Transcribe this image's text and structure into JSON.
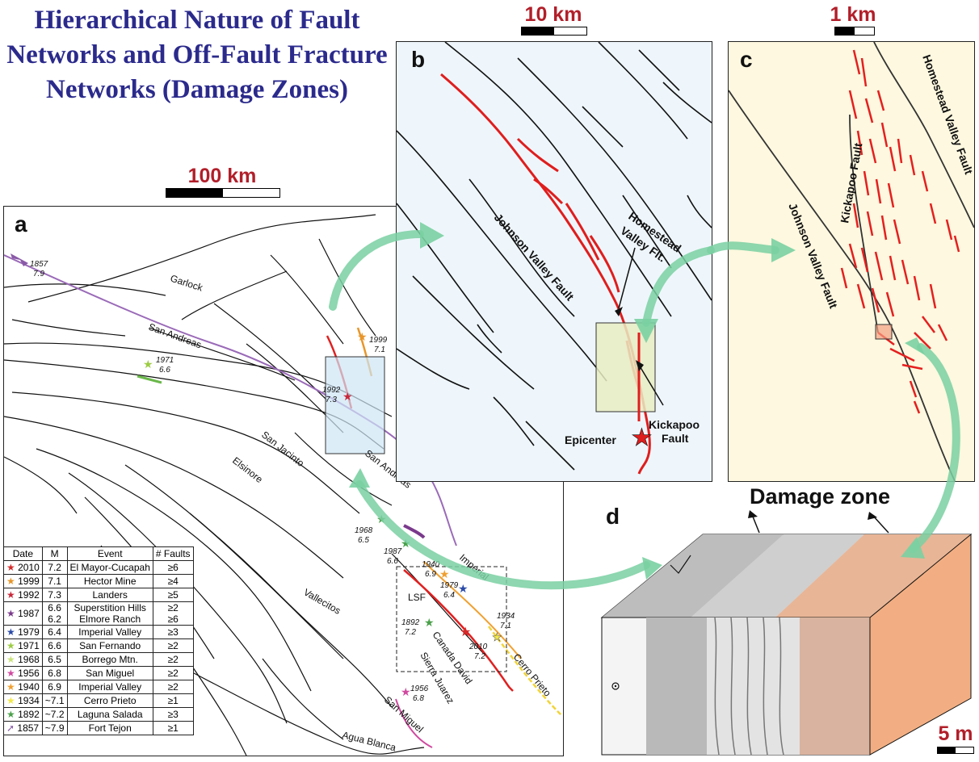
{
  "title": "Hierarchical Nature of Fault Networks and Off-Fault Fracture Networks (Damage Zones)",
  "scale_a": "100 km",
  "scale_b": "10 km",
  "scale_c": "1 km",
  "scale_d": "5 m",
  "panels": {
    "a": "a",
    "b": "b",
    "c": "c",
    "d": "d"
  },
  "panel_a_labels": {
    "garlock": "Garlock",
    "san_andreas_n": "San Andreas",
    "san_andreas_s": "San Andreas",
    "san_jacinto": "San Jacinto",
    "elsinore": "Elsinore",
    "vallecitos": "Vallecitos",
    "imperial": "Imperial",
    "lsf": "LSF",
    "canada_david": "Canada David",
    "sierra_juarez": "Sierra Juarez",
    "cerro_prieto": "Cerro Prieto",
    "san_miguel": "San Miguel",
    "agua_blanca": "Agua Blanca",
    "ev1857_year": "1857",
    "ev1857_m": "7.9",
    "ev1971_year": "1971",
    "ev1971_m": "6.6",
    "ev1999_year": "1999",
    "ev1999_m": "7.1",
    "ev1992_year": "1992",
    "ev1992_m": "7.3",
    "ev1968_year": "1968",
    "ev1968_m": "6.5",
    "ev1987_year": "1987",
    "ev1987_m": "6.6",
    "ev1940_year": "1940",
    "ev1940_m": "6.9",
    "ev1979_year": "1979",
    "ev1979_m": "6.4",
    "ev1934_year": "1934",
    "ev1934_m": "7.1",
    "ev1892_year": "1892",
    "ev1892_m": "7.2",
    "ev2010_year": "2010",
    "ev2010_m": "7.2",
    "ev1956_year": "1956",
    "ev1956_m": "6.8"
  },
  "panel_b_labels": {
    "johnson_valley": "Johnson Valley Fault",
    "homestead_1": "Homestead",
    "homestead_2": "Valley Flt.",
    "kickapoo_1": "Kickapoo",
    "kickapoo_2": "Fault",
    "epicenter": "Epicenter"
  },
  "panel_c_labels": {
    "homestead": "Homestead Valley Fault",
    "kickapoo": "Kickapoo Fault",
    "johnson_valley": "Johnson Valley Fault"
  },
  "damage_zone_label": "Damage zone",
  "legend": {
    "headers": [
      "Date",
      "M",
      "Event",
      "# Faults"
    ],
    "rows": [
      {
        "date": "2010",
        "m": "7.2",
        "event": "El Mayor-Cucapah",
        "faults": "≥6",
        "color": "#d42a2a"
      },
      {
        "date": "1999",
        "m": "7.1",
        "event": "Hector Mine",
        "faults": "≥4",
        "color": "#e8962a"
      },
      {
        "date": "1992",
        "m": "7.3",
        "event": "Landers",
        "faults": "≥5",
        "color": "#c8283a"
      },
      {
        "date": "1987",
        "m": "6.6",
        "event": "Superstition Hills",
        "faults": "≥2",
        "color": "#7a3a8c",
        "m2": "6.2",
        "event2": "Elmore Ranch",
        "faults2": "≥6"
      },
      {
        "date": "1979",
        "m": "6.4",
        "event": "Imperial Valley",
        "faults": "≥3",
        "color": "#2a4aa8"
      },
      {
        "date": "1971",
        "m": "6.6",
        "event": "San Fernando",
        "faults": "≥2",
        "color": "#9ccc44"
      },
      {
        "date": "1968",
        "m": "6.5",
        "event": "Borrego Mtn.",
        "faults": "≥2",
        "color": "#c9e27a"
      },
      {
        "date": "1956",
        "m": "6.8",
        "event": "San Miguel",
        "faults": "≥2",
        "color": "#d04aa0"
      },
      {
        "date": "1940",
        "m": "6.9",
        "event": "Imperial Valley",
        "faults": "≥2",
        "color": "#f0a030"
      },
      {
        "date": "1934",
        "m": "~7.1",
        "event": "Cerro Prieto",
        "faults": "≥1",
        "color": "#f2e84a"
      },
      {
        "date": "1892",
        "m": "~7.2",
        "event": "Laguna Salada",
        "faults": "≥3",
        "color": "#4aa04a"
      },
      {
        "date": "1857",
        "m": "~7.9",
        "event": "Fort Tejon",
        "faults": "≥1",
        "color": "#8a5aa8"
      }
    ]
  }
}
